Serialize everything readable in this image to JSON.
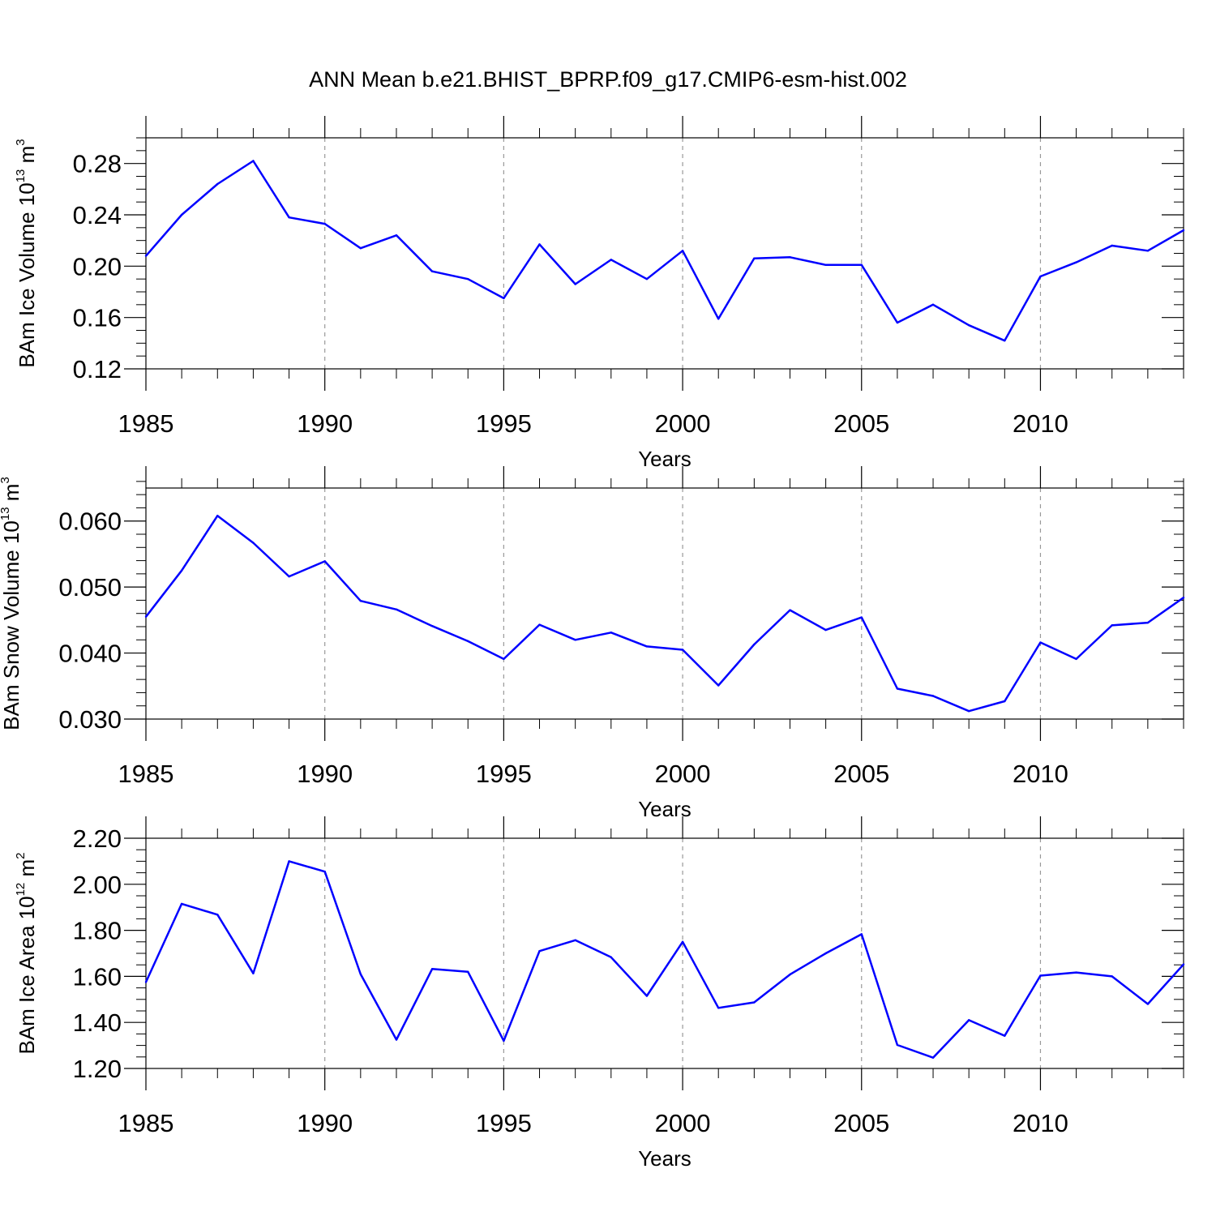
{
  "title": "ANN Mean b.e21.BHIST_BPRP.f09_g17.CMIP6-esm-hist.002",
  "line_color": "#0000ff",
  "grid_color": "#999999",
  "chart_data": [
    {
      "type": "line",
      "xlabel": "Years",
      "ylabel": {
        "base": "BAm Ice Volume 10",
        "exp": "13",
        "unit": " m",
        "unit_exp": "3"
      },
      "xlim": [
        1985,
        2014
      ],
      "ylim": [
        0.12,
        0.3
      ],
      "x_ticks": [
        1985,
        1990,
        1995,
        2000,
        2005,
        2010
      ],
      "y_ticks": [
        0.12,
        0.16,
        0.2,
        0.24,
        0.28
      ],
      "y_tick_labels": [
        "0.12",
        "0.16",
        "0.20",
        "0.24",
        "0.28"
      ],
      "y_minor_step": 0.01,
      "grid": "vertical dashed at major x ticks",
      "x": [
        1985,
        1986,
        1987,
        1988,
        1989,
        1990,
        1991,
        1992,
        1993,
        1994,
        1995,
        1996,
        1997,
        1998,
        1999,
        2000,
        2001,
        2002,
        2003,
        2004,
        2005,
        2006,
        2007,
        2008,
        2009,
        2010,
        2011,
        2012,
        2013,
        2014
      ],
      "values": [
        0.208,
        0.24,
        0.264,
        0.282,
        0.238,
        0.233,
        0.214,
        0.224,
        0.196,
        0.19,
        0.175,
        0.217,
        0.186,
        0.205,
        0.19,
        0.212,
        0.159,
        0.206,
        0.207,
        0.201,
        0.201,
        0.156,
        0.17,
        0.154,
        0.142,
        0.192,
        0.203,
        0.216,
        0.212,
        0.228
      ]
    },
    {
      "type": "line",
      "xlabel": "Years",
      "ylabel": {
        "base": "BAm Snow Volume 10",
        "exp": "13",
        "unit": " m",
        "unit_exp": "3"
      },
      "xlim": [
        1985,
        2014
      ],
      "ylim": [
        0.03,
        0.065
      ],
      "x_ticks": [
        1985,
        1990,
        1995,
        2000,
        2005,
        2010
      ],
      "y_ticks": [
        0.03,
        0.04,
        0.05,
        0.06
      ],
      "y_tick_labels": [
        "0.030",
        "0.040",
        "0.050",
        "0.060"
      ],
      "y_minor_step": 0.002,
      "grid": "vertical dashed at major x ticks",
      "x": [
        1985,
        1986,
        1987,
        1988,
        1989,
        1990,
        1991,
        1992,
        1993,
        1994,
        1995,
        1996,
        1997,
        1998,
        1999,
        2000,
        2001,
        2002,
        2003,
        2004,
        2005,
        2006,
        2007,
        2008,
        2009,
        2010,
        2011,
        2012,
        2013,
        2014
      ],
      "values": [
        0.0455,
        0.0525,
        0.0608,
        0.0567,
        0.0516,
        0.0539,
        0.0479,
        0.0466,
        0.0441,
        0.0418,
        0.0391,
        0.0443,
        0.042,
        0.0431,
        0.041,
        0.0405,
        0.0351,
        0.0413,
        0.0465,
        0.0435,
        0.0454,
        0.0346,
        0.0335,
        0.0312,
        0.0327,
        0.0416,
        0.0391,
        0.0442,
        0.0446,
        0.0484
      ]
    },
    {
      "type": "line",
      "xlabel": "Years",
      "ylabel": {
        "base": "BAm Ice Area 10",
        "exp": "12",
        "unit": " m",
        "unit_exp": "2"
      },
      "xlim": [
        1985,
        2014
      ],
      "ylim": [
        1.2,
        2.2
      ],
      "x_ticks": [
        1985,
        1990,
        1995,
        2000,
        2005,
        2010
      ],
      "y_ticks": [
        1.2,
        1.4,
        1.6,
        1.8,
        2.0,
        2.2
      ],
      "y_tick_labels": [
        "1.20",
        "1.40",
        "1.60",
        "1.80",
        "2.00",
        "2.20"
      ],
      "y_minor_step": 0.05,
      "grid": "vertical dashed at major x ticks",
      "x": [
        1985,
        1986,
        1987,
        1988,
        1989,
        1990,
        1991,
        1992,
        1993,
        1994,
        1995,
        1996,
        1997,
        1998,
        1999,
        2000,
        2001,
        2002,
        2003,
        2004,
        2005,
        2006,
        2007,
        2008,
        2009,
        2010,
        2011,
        2012,
        2013,
        2014
      ],
      "values": [
        1.575,
        1.915,
        1.868,
        1.613,
        2.1,
        2.055,
        1.61,
        1.325,
        1.632,
        1.62,
        1.32,
        1.71,
        1.757,
        1.683,
        1.515,
        1.75,
        1.463,
        1.487,
        1.608,
        1.7,
        1.783,
        1.302,
        1.247,
        1.41,
        1.342,
        1.603,
        1.617,
        1.6,
        1.48,
        1.652
      ]
    }
  ]
}
